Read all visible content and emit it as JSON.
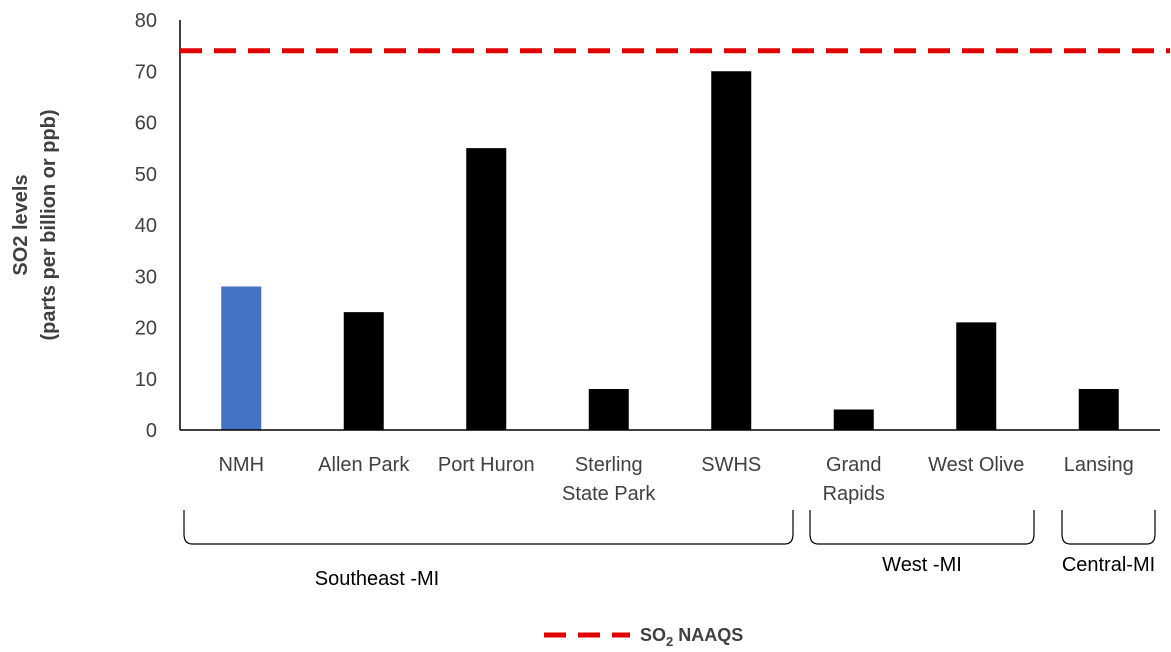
{
  "chart_data": {
    "type": "bar",
    "categories": [
      [
        "NMH"
      ],
      [
        "Allen Park"
      ],
      [
        "Port Huron"
      ],
      [
        "Sterling",
        "State Park"
      ],
      [
        "SWHS"
      ],
      [
        "Grand",
        "Rapids"
      ],
      [
        "West Olive"
      ],
      [
        "Lansing"
      ]
    ],
    "values": [
      28,
      23,
      55,
      8,
      70,
      4,
      21,
      8
    ],
    "highlight_index": 0,
    "colors": {
      "bar": "#000000",
      "highlight": "#4472C4",
      "reference": "#E00000",
      "axis": "#000000"
    },
    "ylabel_lines": [
      "SO2  levels",
      "(parts per billion or ppb)"
    ],
    "ylim": [
      0,
      80
    ],
    "yticks": [
      0,
      10,
      20,
      30,
      40,
      50,
      60,
      70,
      80
    ],
    "reference_line": {
      "value": 74,
      "label_main": "SO",
      "label_sub": "2",
      "label_rest": " NAAQS"
    },
    "groups": [
      {
        "label": "Southeast -MI",
        "start": 0,
        "end": 4
      },
      {
        "label": "West -MI",
        "start": 5,
        "end": 6
      },
      {
        "label": "Central-MI",
        "start": 7,
        "end": 7
      }
    ],
    "grid": false,
    "legend": "bottom-center"
  }
}
